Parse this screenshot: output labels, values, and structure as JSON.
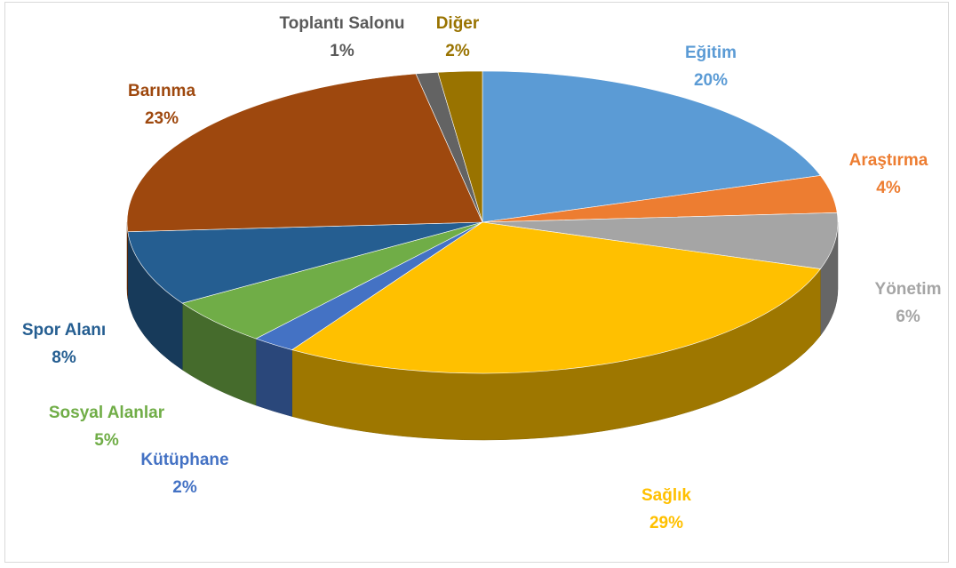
{
  "chart_data": {
    "type": "pie3d",
    "categories": [
      "Eğitim",
      "Araştırma",
      "Yönetim",
      "Sağlık",
      "Kütüphane",
      "Sosyal Alanlar",
      "Spor Alanı",
      "Barınma",
      "Toplantı Salonu",
      "Diğer"
    ],
    "values": [
      20,
      4,
      6,
      29,
      2,
      5,
      8,
      23,
      1,
      2
    ],
    "value_labels": [
      "20%",
      "4%",
      "6%",
      "29%",
      "2%",
      "5%",
      "8%",
      "23%",
      "1%",
      "2%"
    ],
    "colors": [
      "#5b9bd5",
      "#ed7d31",
      "#a5a5a5",
      "#ffc000",
      "#4472c4",
      "#70ad47",
      "#255e91",
      "#9e480e",
      "#636363",
      "#997300"
    ],
    "label_colors": [
      "#5b9bd5",
      "#ed7d31",
      "#a5a5a5",
      "#ffc000",
      "#4472c4",
      "#70ad47",
      "#255e91",
      "#9e480e",
      "#595959",
      "#997300"
    ]
  }
}
